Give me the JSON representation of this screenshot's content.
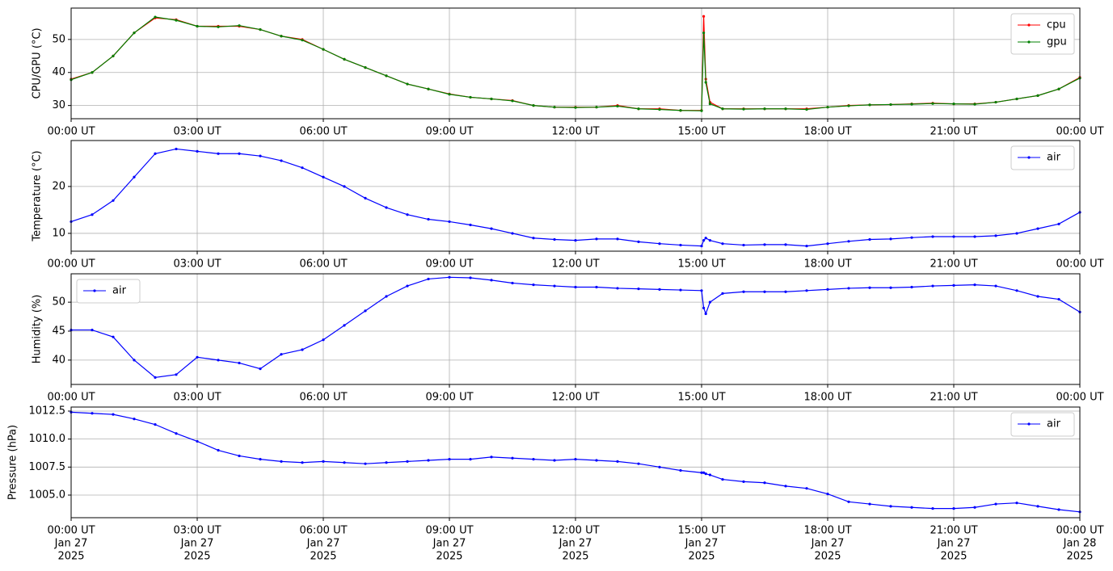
{
  "chart_data": [
    {
      "type": "line",
      "ylabel": "CPU/GPU (°C)",
      "legend": "upper right",
      "grid": true,
      "x": [
        0,
        0.5,
        1,
        1.5,
        2,
        2.5,
        3,
        3.5,
        4,
        4.5,
        5,
        5.5,
        6,
        6.5,
        7,
        7.5,
        8,
        8.5,
        9,
        9.5,
        10,
        10.5,
        11,
        11.5,
        12,
        12.5,
        13,
        13.5,
        14,
        14.5,
        15,
        15.05,
        15.1,
        15.2,
        15.5,
        16,
        16.5,
        17,
        17.5,
        18,
        18.5,
        19,
        19.5,
        20,
        20.5,
        21,
        21.5,
        22,
        22.5,
        23,
        23.5,
        24
      ],
      "xlim": [
        0,
        24
      ],
      "xticks": [
        {
          "value": 0,
          "label": "00:00 UT"
        },
        {
          "value": 3,
          "label": "03:00 UT"
        },
        {
          "value": 6,
          "label": "06:00 UT"
        },
        {
          "value": 9,
          "label": "09:00 UT"
        },
        {
          "value": 12,
          "label": "12:00 UT"
        },
        {
          "value": 15,
          "label": "15:00 UT"
        },
        {
          "value": 18,
          "label": "18:00 UT"
        },
        {
          "value": 21,
          "label": "21:00 UT"
        },
        {
          "value": 24,
          "label": "00:00 UT"
        }
      ],
      "ylim": [
        26,
        59.5
      ],
      "yticks": [
        30,
        40,
        50
      ],
      "series": [
        {
          "name": "cpu",
          "color": "#ff0000",
          "values": [
            38,
            40,
            45,
            52,
            56.5,
            56,
            54,
            54,
            54,
            53,
            51,
            50,
            47,
            44,
            41.5,
            39,
            36.5,
            35,
            33.5,
            32.5,
            32,
            31.5,
            30,
            29.5,
            29.5,
            29.5,
            30,
            29,
            29,
            28.5,
            28.5,
            57,
            38,
            31,
            29,
            29,
            29,
            29,
            29,
            29.5,
            30,
            30.2,
            30.3,
            30.5,
            30.7,
            30.5,
            30.5,
            31,
            32,
            33,
            35,
            38.5
          ]
        },
        {
          "name": "gpu",
          "color": "#008000",
          "values": [
            37.8,
            40,
            45,
            52,
            56.8,
            55.8,
            54,
            53.8,
            54.2,
            53,
            51,
            49.8,
            47,
            44,
            41.5,
            39,
            36.5,
            35,
            33.4,
            32.5,
            32,
            31.4,
            30,
            29.5,
            29.4,
            29.5,
            29.8,
            29,
            28.8,
            28.5,
            28.4,
            52,
            37,
            30.5,
            29,
            28.9,
            29,
            29,
            28.8,
            29.5,
            29.9,
            30.2,
            30.3,
            30.4,
            30.6,
            30.5,
            30.4,
            31,
            32,
            33,
            35,
            38.3
          ]
        }
      ]
    },
    {
      "type": "line",
      "ylabel": "Temperature (°C)",
      "legend": "upper right",
      "grid": true,
      "x": [
        0,
        0.5,
        1,
        1.5,
        2,
        2.5,
        3,
        3.5,
        4,
        4.5,
        5,
        5.5,
        6,
        6.5,
        7,
        7.5,
        8,
        8.5,
        9,
        9.5,
        10,
        10.5,
        11,
        11.5,
        12,
        12.5,
        13,
        13.5,
        14,
        14.5,
        15,
        15.05,
        15.1,
        15.2,
        15.5,
        16,
        16.5,
        17,
        17.5,
        18,
        18.5,
        19,
        19.5,
        20,
        20.5,
        21,
        21.5,
        22,
        22.5,
        23,
        23.5,
        24
      ],
      "xlim": [
        0,
        24
      ],
      "xticks": [
        {
          "value": 0,
          "label": "00:00 UT"
        },
        {
          "value": 3,
          "label": "03:00 UT"
        },
        {
          "value": 6,
          "label": "06:00 UT"
        },
        {
          "value": 9,
          "label": "09:00 UT"
        },
        {
          "value": 12,
          "label": "12:00 UT"
        },
        {
          "value": 15,
          "label": "15:00 UT"
        },
        {
          "value": 18,
          "label": "18:00 UT"
        },
        {
          "value": 21,
          "label": "21:00 UT"
        },
        {
          "value": 24,
          "label": "00:00 UT"
        }
      ],
      "ylim": [
        6.2,
        29.8
      ],
      "yticks": [
        10,
        20
      ],
      "series": [
        {
          "name": "air",
          "color": "#0000ff",
          "values": [
            12.5,
            14,
            17,
            22,
            27,
            28,
            27.5,
            27,
            27,
            26.5,
            25.5,
            24,
            22,
            20,
            17.5,
            15.5,
            14,
            13,
            12.5,
            11.8,
            11,
            10,
            9,
            8.7,
            8.5,
            8.8,
            8.8,
            8.2,
            7.8,
            7.5,
            7.3,
            8.5,
            9,
            8.5,
            7.8,
            7.5,
            7.6,
            7.6,
            7.3,
            7.8,
            8.3,
            8.7,
            8.8,
            9.1,
            9.3,
            9.3,
            9.3,
            9.5,
            10,
            11,
            12,
            14.5
          ]
        }
      ]
    },
    {
      "type": "line",
      "ylabel": "Humidity (%)",
      "legend": "upper left",
      "grid": true,
      "x": [
        0,
        0.5,
        1,
        1.5,
        2,
        2.5,
        3,
        3.5,
        4,
        4.5,
        5,
        5.5,
        6,
        6.5,
        7,
        7.5,
        8,
        8.5,
        9,
        9.5,
        10,
        10.5,
        11,
        11.5,
        12,
        12.5,
        13,
        13.5,
        14,
        14.5,
        15,
        15.05,
        15.1,
        15.2,
        15.5,
        16,
        16.5,
        17,
        17.5,
        18,
        18.5,
        19,
        19.5,
        20,
        20.5,
        21,
        21.5,
        22,
        22.5,
        23,
        23.5,
        24
      ],
      "xlim": [
        0,
        24
      ],
      "xticks": [
        {
          "value": 0,
          "label": "00:00 UT"
        },
        {
          "value": 3,
          "label": "03:00 UT"
        },
        {
          "value": 6,
          "label": "06:00 UT"
        },
        {
          "value": 9,
          "label": "09:00 UT"
        },
        {
          "value": 12,
          "label": "12:00 UT"
        },
        {
          "value": 15,
          "label": "15:00 UT"
        },
        {
          "value": 18,
          "label": "18:00 UT"
        },
        {
          "value": 21,
          "label": "21:00 UT"
        },
        {
          "value": 24,
          "label": "00:00 UT"
        }
      ],
      "ylim": [
        35.8,
        54.9
      ],
      "yticks": [
        40,
        45,
        50
      ],
      "series": [
        {
          "name": "air",
          "color": "#0000ff",
          "values": [
            45.2,
            45.2,
            44,
            40,
            37,
            37.5,
            40.5,
            40,
            39.5,
            38.5,
            41,
            41.8,
            43.5,
            46,
            48.5,
            51,
            52.8,
            54,
            54.3,
            54.2,
            53.8,
            53.3,
            53,
            52.8,
            52.6,
            52.6,
            52.4,
            52.3,
            52.2,
            52.1,
            52,
            49,
            48,
            50,
            51.5,
            51.8,
            51.8,
            51.8,
            52,
            52.2,
            52.4,
            52.5,
            52.5,
            52.6,
            52.8,
            52.9,
            53,
            52.8,
            52,
            51,
            50.5,
            48.3
          ]
        }
      ]
    },
    {
      "type": "line",
      "ylabel": "Pressure (hPa)",
      "legend": "upper right",
      "grid": true,
      "x": [
        0,
        0.5,
        1,
        1.5,
        2,
        2.5,
        3,
        3.5,
        4,
        4.5,
        5,
        5.5,
        6,
        6.5,
        7,
        7.5,
        8,
        8.5,
        9,
        9.5,
        10,
        10.5,
        11,
        11.5,
        12,
        12.5,
        13,
        13.5,
        14,
        14.5,
        15,
        15.05,
        15.1,
        15.2,
        15.5,
        16,
        16.5,
        17,
        17.5,
        18,
        18.5,
        19,
        19.5,
        20,
        20.5,
        21,
        21.5,
        22,
        22.5,
        23,
        23.5,
        24
      ],
      "xlim": [
        0,
        24
      ],
      "xticks": [
        {
          "value": 0,
          "label": [
            "00:00 UT",
            "Jan 27",
            "2025"
          ]
        },
        {
          "value": 3,
          "label": [
            "03:00 UT",
            "Jan 27",
            "2025"
          ]
        },
        {
          "value": 6,
          "label": [
            "06:00 UT",
            "Jan 27",
            "2025"
          ]
        },
        {
          "value": 9,
          "label": [
            "09:00 UT",
            "Jan 27",
            "2025"
          ]
        },
        {
          "value": 12,
          "label": [
            "12:00 UT",
            "Jan 27",
            "2025"
          ]
        },
        {
          "value": 15,
          "label": [
            "15:00 UT",
            "Jan 27",
            "2025"
          ]
        },
        {
          "value": 18,
          "label": [
            "18:00 UT",
            "Jan 27",
            "2025"
          ]
        },
        {
          "value": 21,
          "label": [
            "21:00 UT",
            "Jan 27",
            "2025"
          ]
        },
        {
          "value": 24,
          "label": [
            "00:00 UT",
            "Jan 28",
            "2025"
          ]
        }
      ],
      "ylim": [
        1002.98,
        1012.86
      ],
      "yticks": [
        {
          "value": 1005,
          "label": "1005.0"
        },
        1007.5,
        {
          "value": 1010,
          "label": "1010.0"
        },
        1012.5
      ],
      "series": [
        {
          "name": "air",
          "color": "#0000ff",
          "values": [
            1012.4,
            1012.3,
            1012.2,
            1011.8,
            1011.3,
            1010.5,
            1009.8,
            1009.0,
            1008.5,
            1008.2,
            1008.0,
            1007.9,
            1008.0,
            1007.9,
            1007.8,
            1007.9,
            1008.0,
            1008.1,
            1008.2,
            1008.2,
            1008.4,
            1008.3,
            1008.2,
            1008.1,
            1008.2,
            1008.1,
            1008.0,
            1007.8,
            1007.5,
            1007.2,
            1007.0,
            1007.0,
            1006.9,
            1006.8,
            1006.4,
            1006.2,
            1006.1,
            1005.8,
            1005.6,
            1005.1,
            1004.4,
            1004.2,
            1004.0,
            1003.9,
            1003.8,
            1003.8,
            1003.9,
            1004.2,
            1004.3,
            1004.0,
            1003.7,
            1003.5
          ]
        }
      ]
    }
  ]
}
